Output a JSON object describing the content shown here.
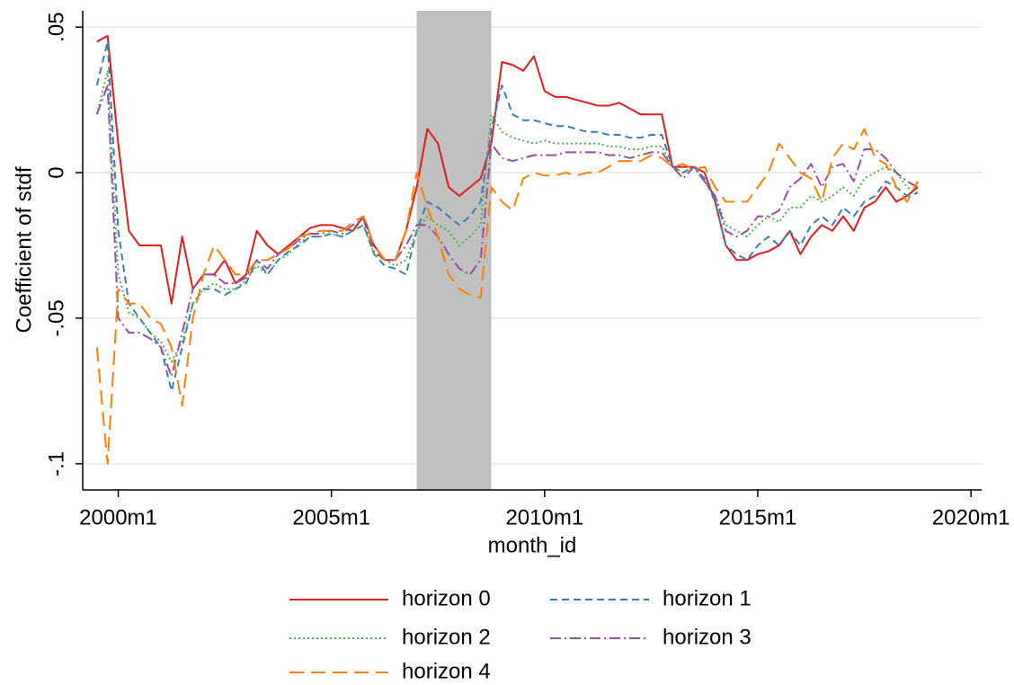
{
  "chart_data": {
    "type": "line",
    "ylabel": "Coefficient of stdf",
    "xlabel": "month_id",
    "xlim": [
      470,
      723
    ],
    "ylim": [
      -0.109,
      0.0556
    ],
    "xticks": [
      {
        "value": 480,
        "label": "2000m1"
      },
      {
        "value": 540,
        "label": "2005m1"
      },
      {
        "value": 600,
        "label": "2010m1"
      },
      {
        "value": 660,
        "label": "2015m1"
      },
      {
        "value": 720,
        "label": "2020m1"
      }
    ],
    "yticks": [
      {
        "value": -0.1,
        "label": "-.1"
      },
      {
        "value": -0.05,
        "label": "-.05"
      },
      0,
      {
        "value": 0.05,
        "label": ".05"
      }
    ],
    "grid": true,
    "shaded_region": [
      564,
      585
    ],
    "shade_color": "#c0c0c0",
    "x": [
      474,
      477,
      480,
      483,
      486,
      489,
      492,
      495,
      498,
      501,
      504,
      507,
      510,
      513,
      516,
      519,
      522,
      525,
      528,
      531,
      534,
      537,
      540,
      543,
      546,
      549,
      552,
      555,
      558,
      561,
      564,
      567,
      570,
      573,
      576,
      579,
      582,
      585,
      588,
      591,
      594,
      597,
      600,
      603,
      606,
      609,
      612,
      615,
      618,
      621,
      624,
      627,
      630,
      633,
      636,
      639,
      642,
      645,
      648,
      651,
      654,
      657,
      660,
      663,
      666,
      669,
      672,
      675,
      678,
      681,
      684,
      687,
      690,
      693,
      696,
      699,
      702,
      705
    ],
    "series": [
      {
        "name": "horizon 0",
        "color": "#e41a1c",
        "dash": "none",
        "values": [
          0.045,
          0.047,
          0.01,
          -0.02,
          -0.025,
          -0.025,
          -0.025,
          -0.045,
          -0.022,
          -0.04,
          -0.035,
          -0.035,
          -0.03,
          -0.038,
          -0.035,
          -0.02,
          -0.025,
          -0.028,
          -0.025,
          -0.022,
          -0.019,
          -0.018,
          -0.018,
          -0.019,
          -0.02,
          -0.015,
          -0.025,
          -0.03,
          -0.03,
          -0.02,
          -0.005,
          0.015,
          0.01,
          -0.005,
          -0.008,
          -0.005,
          -0.002,
          0.01,
          0.038,
          0.037,
          0.035,
          0.04,
          0.028,
          0.026,
          0.026,
          0.025,
          0.024,
          0.023,
          0.023,
          0.024,
          0.022,
          0.02,
          0.02,
          0.02,
          0.002,
          0.002,
          0.002,
          0,
          -0.01,
          -0.025,
          -0.03,
          -0.03,
          -0.028,
          -0.027,
          -0.025,
          -0.02,
          -0.028,
          -0.022,
          -0.018,
          -0.02,
          -0.015,
          -0.02,
          -0.012,
          -0.01,
          -0.005,
          -0.01,
          -0.008,
          -0.005
        ]
      },
      {
        "name": "horizon 1",
        "color": "#377eb8",
        "dash": "8,5",
        "values": [
          0.03,
          0.045,
          -0.02,
          -0.045,
          -0.05,
          -0.055,
          -0.06,
          -0.075,
          -0.06,
          -0.045,
          -0.04,
          -0.04,
          -0.042,
          -0.04,
          -0.038,
          -0.03,
          -0.035,
          -0.03,
          -0.027,
          -0.025,
          -0.022,
          -0.022,
          -0.021,
          -0.022,
          -0.02,
          -0.018,
          -0.028,
          -0.032,
          -0.033,
          -0.035,
          -0.02,
          -0.01,
          -0.012,
          -0.015,
          -0.018,
          -0.015,
          -0.01,
          0.015,
          0.03,
          0.02,
          0.018,
          0.018,
          0.017,
          0.016,
          0.016,
          0.015,
          0.014,
          0.014,
          0.013,
          0.013,
          0.012,
          0.012,
          0.013,
          0.013,
          0.002,
          0,
          0.002,
          -0.002,
          -0.01,
          -0.025,
          -0.028,
          -0.03,
          -0.025,
          -0.022,
          -0.025,
          -0.02,
          -0.025,
          -0.018,
          -0.015,
          -0.018,
          -0.012,
          -0.015,
          -0.01,
          -0.008,
          -0.003,
          -0.005,
          -0.008,
          -0.007
        ]
      },
      {
        "name": "horizon 2",
        "color": "#4daf4a",
        "dash": "2,3",
        "values": [
          0.02,
          0.035,
          -0.035,
          -0.048,
          -0.05,
          -0.055,
          -0.058,
          -0.065,
          -0.058,
          -0.045,
          -0.04,
          -0.038,
          -0.04,
          -0.04,
          -0.037,
          -0.032,
          -0.035,
          -0.03,
          -0.028,
          -0.024,
          -0.022,
          -0.022,
          -0.021,
          -0.022,
          -0.02,
          -0.018,
          -0.028,
          -0.03,
          -0.032,
          -0.03,
          -0.02,
          -0.015,
          -0.018,
          -0.02,
          -0.025,
          -0.022,
          -0.018,
          0.02,
          0.014,
          0.012,
          0.011,
          0.01,
          0.011,
          0.01,
          0.01,
          0.01,
          0.01,
          0.01,
          0.009,
          0.009,
          0.008,
          0.008,
          0.009,
          0.009,
          0.002,
          0,
          0.002,
          -0.003,
          -0.008,
          -0.018,
          -0.02,
          -0.022,
          -0.018,
          -0.015,
          -0.017,
          -0.012,
          -0.012,
          -0.008,
          -0.01,
          -0.008,
          -0.005,
          -0.008,
          -0.002,
          0,
          0.002,
          0,
          -0.005,
          -0.007
        ]
      },
      {
        "name": "horizon 3",
        "color": "#984ea3",
        "dash": "12,4,2,4",
        "values": [
          0.02,
          0.03,
          -0.05,
          -0.055,
          -0.055,
          -0.057,
          -0.06,
          -0.07,
          -0.055,
          -0.04,
          -0.035,
          -0.035,
          -0.038,
          -0.038,
          -0.036,
          -0.03,
          -0.033,
          -0.028,
          -0.026,
          -0.023,
          -0.021,
          -0.021,
          -0.02,
          -0.021,
          -0.018,
          -0.016,
          -0.027,
          -0.03,
          -0.03,
          -0.025,
          -0.018,
          -0.018,
          -0.022,
          -0.028,
          -0.033,
          -0.035,
          -0.03,
          0.01,
          0.005,
          0.004,
          0.005,
          0.006,
          0.006,
          0.006,
          0.007,
          0.007,
          0.007,
          0.007,
          0.006,
          0.006,
          0.005,
          0.006,
          0.007,
          0.007,
          0.002,
          -0.002,
          0.002,
          -0.003,
          -0.008,
          -0.02,
          -0.022,
          -0.02,
          -0.015,
          -0.015,
          -0.013,
          -0.005,
          -0.002,
          0.003,
          -0.005,
          0.002,
          0.003,
          -0.003,
          0.008,
          0.008,
          0.005,
          0,
          -0.003,
          -0.005
        ]
      },
      {
        "name": "horizon 4",
        "color": "#ff7f00",
        "dash": "16,8",
        "values": [
          -0.06,
          -0.1,
          -0.04,
          -0.045,
          -0.045,
          -0.05,
          -0.052,
          -0.06,
          -0.08,
          -0.05,
          -0.035,
          -0.025,
          -0.03,
          -0.035,
          -0.035,
          -0.03,
          -0.03,
          -0.028,
          -0.026,
          -0.022,
          -0.021,
          -0.02,
          -0.02,
          -0.02,
          -0.017,
          -0.015,
          -0.025,
          -0.03,
          -0.03,
          -0.02,
          0,
          -0.012,
          -0.022,
          -0.035,
          -0.04,
          -0.042,
          -0.043,
          -0.005,
          -0.01,
          -0.013,
          -0.002,
          0,
          -0.001,
          -0.001,
          0,
          -0.001,
          0,
          0,
          0.002,
          0.004,
          0.004,
          0.004,
          0.006,
          0.005,
          0.002,
          0.003,
          0.001,
          0.002,
          -0.005,
          -0.01,
          -0.01,
          -0.01,
          -0.005,
          0,
          0.01,
          0.005,
          0,
          -0.002,
          -0.01,
          0.005,
          0.01,
          0.008,
          0.015,
          0.005,
          0.003,
          -0.005,
          -0.01,
          -0.003
        ]
      }
    ]
  }
}
